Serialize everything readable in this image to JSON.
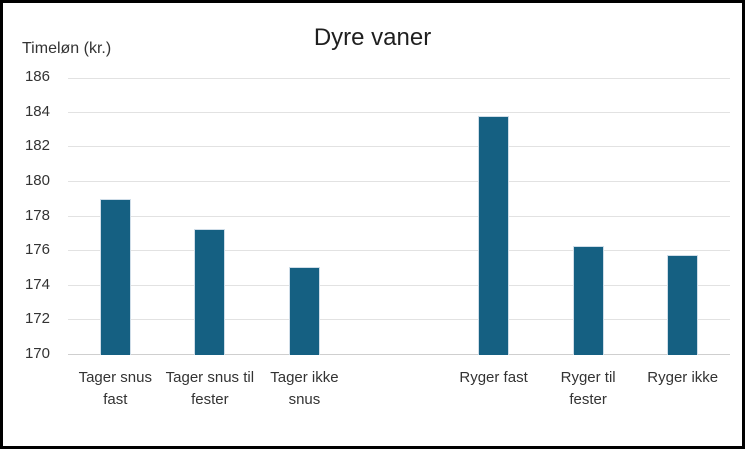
{
  "chart": {
    "title": "Dyre vaner",
    "axis_title": "Timeløn (kr.)"
  },
  "chart_data": {
    "type": "bar",
    "title": "Dyre vaner",
    "xlabel": "",
    "ylabel": "Timeløn (kr.)",
    "categories": [
      "Tager snus fast",
      "Tager snus til fester",
      "Tager ikke snus",
      "",
      "Ryger fast",
      "Ryger til fester",
      "Ryger ikke"
    ],
    "values": [
      179.0,
      177.3,
      175.1,
      null,
      183.8,
      176.3,
      175.8
    ],
    "ylim": [
      170,
      186
    ],
    "ytick_step": 2,
    "ytick_labels": [
      "170",
      "172",
      "174",
      "176",
      "178",
      "180",
      "182",
      "184",
      "186"
    ],
    "grid": true,
    "legend": "none",
    "colors": {
      "bar_fill": "#156082",
      "bar_edge": "#cfdde8",
      "gridline": "#e2e2e2",
      "axis_line": "#cfcfcf",
      "title_text": "#1f1f1f",
      "label_text": "#333333",
      "frame_border": "#000000"
    }
  }
}
